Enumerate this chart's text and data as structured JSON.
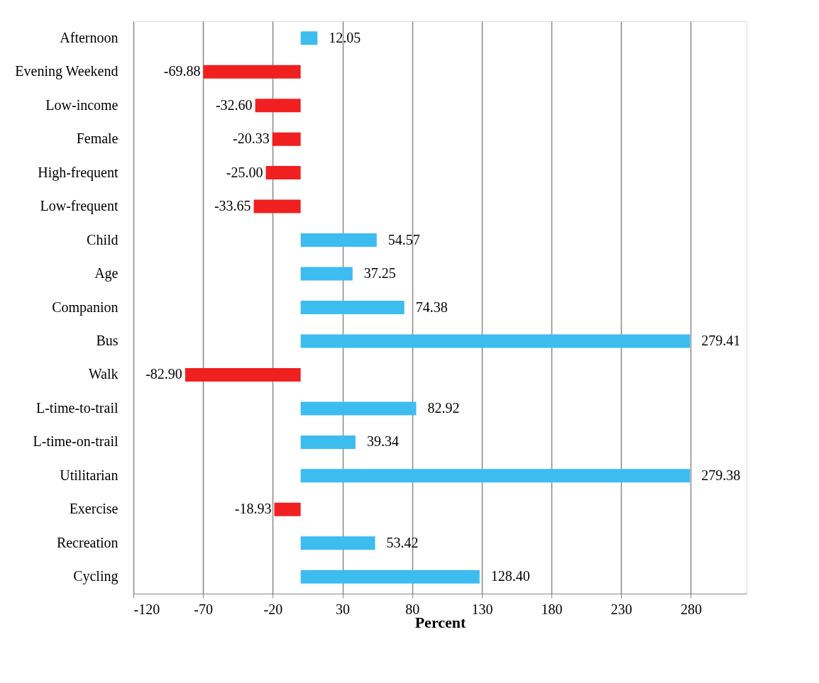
{
  "chart_data": {
    "type": "bar",
    "orientation": "horizontal",
    "xlabel": "Percent",
    "categories": [
      "Afternoon",
      "Evening Weekend",
      "Low-income",
      "Female",
      "High-frequent",
      "Low-frequent",
      "Child",
      "Age",
      "Companion",
      "Bus",
      "Walk",
      "L-time-to-trail",
      "L-time-on-trail",
      "Utilitarian",
      "Exercise",
      "Recreation",
      "Cycling"
    ],
    "values": [
      12.05,
      -69.88,
      -32.6,
      -20.33,
      -25.0,
      -33.65,
      54.57,
      37.25,
      74.38,
      279.41,
      -82.9,
      82.92,
      39.34,
      279.38,
      -18.93,
      53.42,
      128.4
    ],
    "value_labels": [
      "12.05",
      "-69.88",
      "-32.60",
      "-20.33",
      "-25.00",
      "-33.65",
      "54.57",
      "37.25",
      "74.38",
      "279.41",
      "-82.90",
      "82.92",
      "39.34",
      "279.38",
      "-18.93",
      "53.42",
      "128.40"
    ],
    "colors": [
      "#3dbcf0",
      "#f02020",
      "#f02020",
      "#f02020",
      "#f02020",
      "#f02020",
      "#3dbcf0",
      "#3dbcf0",
      "#3dbcf0",
      "#3dbcf0",
      "#f02020",
      "#3dbcf0",
      "#3dbcf0",
      "#3dbcf0",
      "#f02020",
      "#3dbcf0",
      "#3dbcf0"
    ],
    "xlim": [
      -120,
      320
    ],
    "xticks": [
      -120,
      -70,
      -20,
      30,
      80,
      130,
      180,
      230,
      280
    ],
    "grid": "x"
  }
}
